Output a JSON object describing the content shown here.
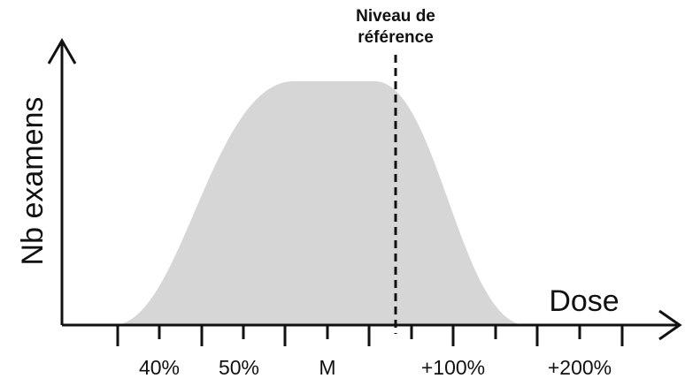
{
  "y_axis_label": "Nb examens",
  "x_axis_label": "Dose",
  "annotation": {
    "lines": [
      "Niveau de",
      "référence"
    ]
  },
  "tick_labels": [
    "40%",
    "50%",
    "M",
    "+100%",
    "+200%"
  ]
}
